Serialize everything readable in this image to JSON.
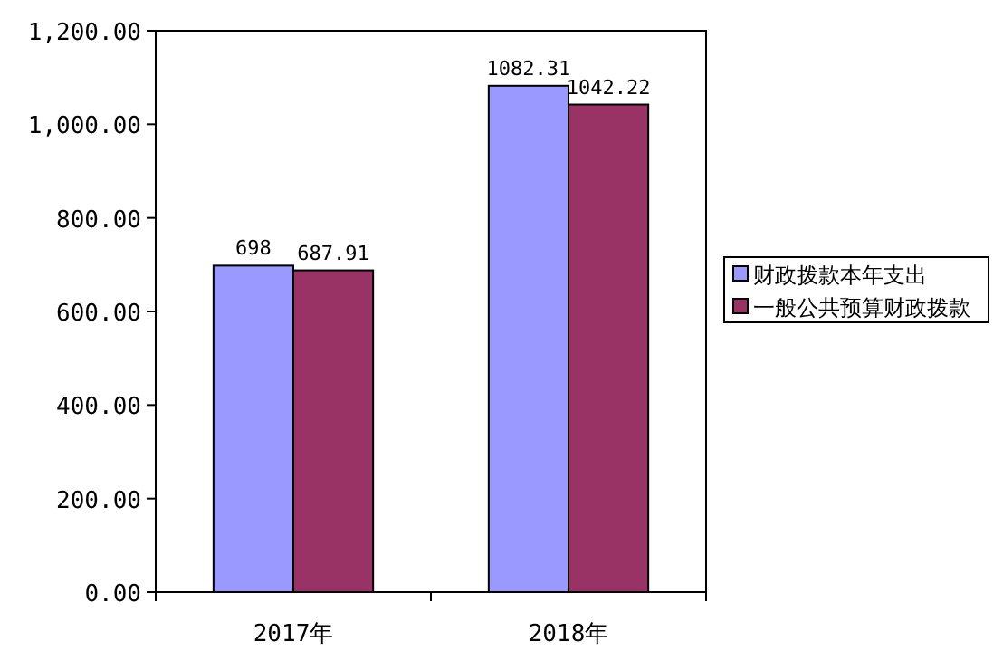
{
  "chart_data": {
    "type": "bar",
    "categories": [
      "2017年",
      "2018年"
    ],
    "series": [
      {
        "name": "财政拨款本年支出",
        "color": "#9999ff",
        "values": [
          698,
          1082.31
        ]
      },
      {
        "name": "一般公共预算财政拨款",
        "color": "#993366",
        "values": [
          687.91,
          1042.22
        ]
      }
    ],
    "ylim": [
      0,
      1200
    ],
    "yticks": [
      {
        "value": 0,
        "label": "0.00"
      },
      {
        "value": 200,
        "label": "200.00"
      },
      {
        "value": 400,
        "label": "400.00"
      },
      {
        "value": 600,
        "label": "600.00"
      },
      {
        "value": 800,
        "label": "800.00"
      },
      {
        "value": 1000,
        "label": "1,000.00"
      },
      {
        "value": 1200,
        "label": "1,200.00"
      }
    ],
    "data_labels": true,
    "legend": "right"
  }
}
